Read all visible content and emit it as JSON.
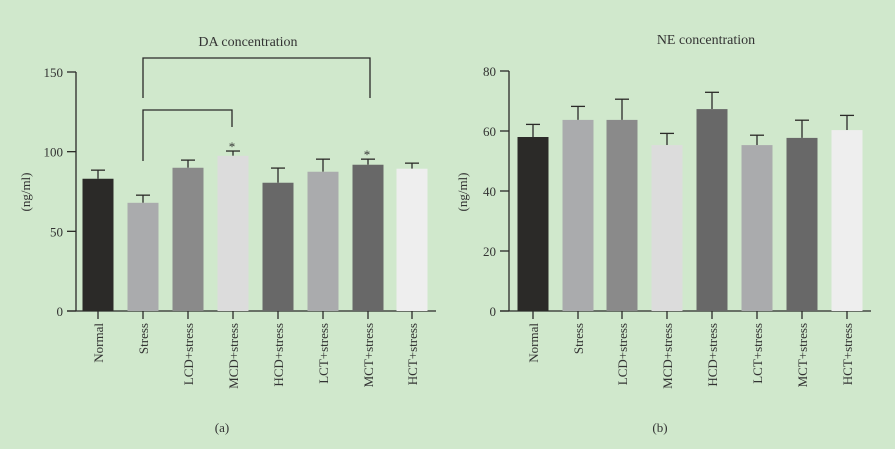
{
  "chart_data": [
    {
      "type": "bar",
      "title": "DA concentration",
      "caption": "(a)",
      "xlabel": "",
      "ylabel": "(ng/ml)",
      "ylim": [
        0,
        150
      ],
      "yticks": [
        0,
        50,
        100,
        150
      ],
      "categories": [
        "Normal",
        "Stress",
        "LCD+stress",
        "MCD+stress",
        "HCD+stress",
        "LCT+stress",
        "MCT+stress",
        "HCT+stress"
      ],
      "values": [
        83.0,
        67.9,
        89.9,
        97.4,
        80.5,
        87.4,
        91.8,
        89.3
      ],
      "error_upper": [
        5.4,
        4.8,
        4.8,
        3.0,
        9.2,
        7.9,
        3.5,
        3.5
      ],
      "colors": [
        "#2b2a28",
        "#aaabad",
        "#8a8a8a",
        "#dcdcdc",
        "#686868",
        "#aaabad",
        "#686868",
        "#eeeeee"
      ],
      "significance": [
        {
          "from": "Stress",
          "to": "MCD+stress",
          "mark": "*"
        },
        {
          "from": "Stress",
          "to": "MCT+stress",
          "mark": "*"
        }
      ]
    },
    {
      "type": "bar",
      "title": "NE concentration",
      "caption": "(b)",
      "xlabel": "",
      "ylabel": "(ng/ml)",
      "ylim": [
        0,
        80
      ],
      "yticks": [
        0,
        20,
        40,
        60,
        80
      ],
      "categories": [
        "Normal",
        "Stress",
        "LCD+stress",
        "MCD+stress",
        "HCD+stress",
        "LCT+stress",
        "MCT+stress",
        "HCT+stress"
      ],
      "values": [
        58.0,
        63.7,
        63.7,
        55.3,
        67.3,
        55.3,
        57.7,
        60.3
      ],
      "error_upper": [
        4.2,
        4.5,
        6.9,
        3.9,
        5.6,
        3.3,
        5.9,
        4.9
      ],
      "colors": [
        "#2b2a28",
        "#aaabad",
        "#8a8a8a",
        "#dcdcdc",
        "#686868",
        "#aaabad",
        "#686868",
        "#eeeeee"
      ]
    }
  ]
}
